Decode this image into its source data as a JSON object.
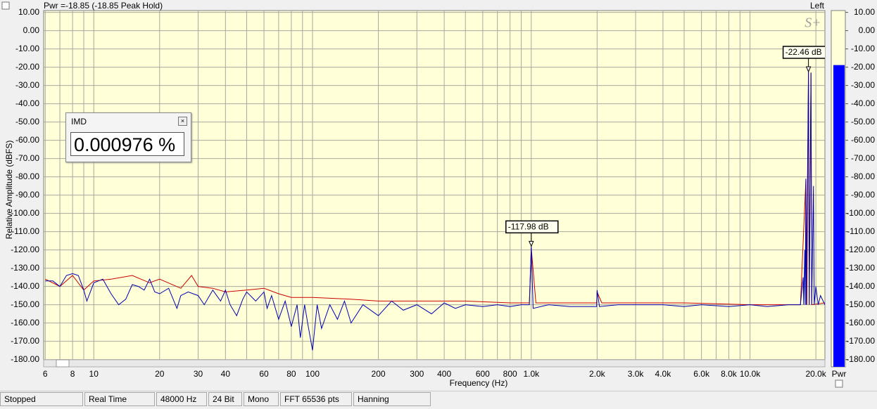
{
  "chart_data": [
    {
      "type": "line",
      "title": "Pwr =-18.85 (-18.85 Peak Hold)",
      "channel": "Left",
      "x_label": "Frequency (Hz)",
      "y_label": "Relative Amplitude (dBFS)",
      "x_scale": "log",
      "grid": true,
      "xlim": [
        5.9,
        22000
      ],
      "ylim": [
        -184,
        11
      ],
      "xticks": [
        6,
        8,
        10,
        20,
        30,
        40,
        60,
        80,
        100,
        200,
        300,
        400,
        600,
        800,
        {
          "value": 1000,
          "label": "1.0k"
        },
        {
          "value": 2000,
          "label": "2.0k"
        },
        {
          "value": 3000,
          "label": "3.0k"
        },
        {
          "value": 4000,
          "label": "4.0k"
        },
        {
          "value": 6000,
          "label": "6.0k"
        },
        {
          "value": 8000,
          "label": "8.0k"
        },
        {
          "value": 10000,
          "label": "10.0k"
        },
        {
          "value": 20000,
          "label": "20.0k"
        }
      ],
      "xminor_ticks": [
        7,
        9,
        50,
        70,
        90,
        500,
        700,
        900,
        5000,
        7000,
        9000
      ],
      "yticks": [
        {
          "value": 10,
          "label": "10.00"
        },
        {
          "value": 0,
          "label": "0.00"
        },
        {
          "value": -10,
          "label": "-10.00"
        },
        {
          "value": -20,
          "label": "-20.00"
        },
        {
          "value": -30,
          "label": "-30.00"
        },
        {
          "value": -40,
          "label": "-40.00"
        },
        {
          "value": -50,
          "label": "-50.00"
        },
        {
          "value": -60,
          "label": "-60.00"
        },
        {
          "value": -70,
          "label": "-70.00"
        },
        {
          "value": -80,
          "label": "-80.00"
        },
        {
          "value": -90,
          "label": "-90.00"
        },
        {
          "value": -100,
          "label": "-100.00"
        },
        {
          "value": -110,
          "label": "-110.00"
        },
        {
          "value": -120,
          "label": "-120.00"
        },
        {
          "value": -130,
          "label": "-130.00"
        },
        {
          "value": -140,
          "label": "-140.00"
        },
        {
          "value": -150,
          "label": "-150.00"
        },
        {
          "value": -160,
          "label": "-160.00"
        },
        {
          "value": -170,
          "label": "-170.00"
        },
        {
          "value": -180,
          "label": "-180.00"
        }
      ],
      "series": [
        {
          "color": "#cc0000",
          "x": [
            6,
            7,
            8,
            9,
            10,
            12,
            15,
            18,
            20,
            25,
            28,
            30,
            35,
            40,
            50,
            60,
            70,
            80,
            100,
            150,
            200,
            300,
            500,
            800,
            980,
            1000,
            1050,
            1990,
            2000,
            2100,
            5000,
            10000,
            17000,
            18000,
            18200,
            18500,
            18650,
            19000,
            19150,
            22000
          ],
          "values": [
            -136,
            -140,
            -134,
            -142,
            -137,
            -136,
            -134,
            -138,
            -136,
            -141,
            -134,
            -140,
            -141,
            -143,
            -142,
            -141,
            -144,
            -146,
            -146,
            -147,
            -148,
            -148,
            -148,
            -149,
            -149,
            -119,
            -149,
            -149,
            -143,
            -149,
            -149,
            -150,
            -150,
            -82,
            -150,
            -22.46,
            -150,
            -23,
            -150,
            -149
          ]
        },
        {
          "color": "#0000b0",
          "x": [
            6,
            6.5,
            7,
            7.5,
            8,
            8.5,
            9,
            9.3,
            10,
            11,
            12,
            13,
            14,
            15,
            16,
            17,
            18,
            19,
            20,
            22,
            24,
            25,
            27,
            30,
            32,
            35,
            38,
            40,
            42,
            45,
            48,
            50,
            55,
            60,
            62,
            65,
            70,
            75,
            80,
            85,
            88,
            92,
            95,
            100,
            105,
            110,
            120,
            130,
            140,
            150,
            170,
            200,
            230,
            260,
            300,
            350,
            400,
            450,
            500,
            600,
            700,
            800,
            900,
            980,
            1000,
            1020,
            1200,
            1500,
            1990,
            2000,
            2050,
            2500,
            3000,
            4000,
            5000,
            6000,
            8000,
            10000,
            12000,
            15000,
            17000,
            17500,
            17600,
            17800,
            17900,
            18000,
            18100,
            18500,
            18650,
            19000,
            19150,
            19500,
            19650,
            20000,
            20500,
            21000,
            22000
          ],
          "values": [
            -137,
            -137,
            -140,
            -134,
            -133,
            -134,
            -142,
            -148,
            -138,
            -136,
            -144,
            -150,
            -147,
            -139,
            -140,
            -142,
            -136,
            -143,
            -144,
            -141,
            -152,
            -145,
            -143,
            -145,
            -150,
            -142,
            -148,
            -142,
            -150,
            -156,
            -147,
            -143,
            -148,
            -143,
            -152,
            -145,
            -158,
            -148,
            -162,
            -150,
            -168,
            -150,
            -160,
            -175,
            -150,
            -163,
            -150,
            -158,
            -148,
            -160,
            -150,
            -156,
            -148,
            -153,
            -150,
            -155,
            -149,
            -152,
            -150,
            -151,
            -150,
            -151,
            -150,
            -150,
            -118,
            -152,
            -150,
            -151,
            -151,
            -142,
            -151,
            -150,
            -150,
            -150,
            -151,
            -150,
            -151,
            -150,
            -151,
            -150,
            -150,
            -135,
            -150,
            -120,
            -150,
            -81,
            -150,
            -22.46,
            -150,
            -23,
            -150,
            -85,
            -150,
            -140,
            -150,
            -145,
            -150
          ]
        }
      ],
      "annotations": [
        {
          "x": 1000,
          "y": -117.98,
          "label": "-117.98 dB"
        },
        {
          "x": 18500,
          "y": -22.46,
          "label": "-22.46 dB"
        }
      ]
    },
    {
      "type": "bar",
      "categories": [
        "Pwr"
      ],
      "values": [
        -18.85
      ],
      "color": "#0000ff",
      "ylim": [
        -184,
        11
      ],
      "yticks": [
        {
          "value": 10,
          "label": "10.00"
        },
        {
          "value": 0,
          "label": "0.00"
        },
        {
          "value": -10,
          "label": "-10.00"
        },
        {
          "value": -20,
          "label": "-20.00"
        },
        {
          "value": -30,
          "label": "-30.00"
        },
        {
          "value": -40,
          "label": "-40.00"
        },
        {
          "value": -50,
          "label": "-50.00"
        },
        {
          "value": -60,
          "label": "-60.00"
        },
        {
          "value": -70,
          "label": "-70.00"
        },
        {
          "value": -80,
          "label": "-80.00"
        },
        {
          "value": -90,
          "label": "-90.00"
        },
        {
          "value": -100,
          "label": "-100.00"
        },
        {
          "value": -110,
          "label": "-110.00"
        },
        {
          "value": -120,
          "label": "-120.00"
        },
        {
          "value": -130,
          "label": "-130.00"
        },
        {
          "value": -140,
          "label": "-140.00"
        },
        {
          "value": -150,
          "label": "-150.00"
        },
        {
          "value": -160,
          "label": "-160.00"
        },
        {
          "value": -170,
          "label": "-170.00"
        },
        {
          "value": -180,
          "label": "-180.00"
        }
      ]
    }
  ],
  "logo": "S+",
  "imd_window": {
    "title": "IMD",
    "value": "0.000976 %"
  },
  "status_bar": [
    "Stopped",
    "Real Time",
    "48000 Hz",
    "24 Bit",
    "Mono",
    "FFT 65536 pts",
    "Hanning"
  ]
}
